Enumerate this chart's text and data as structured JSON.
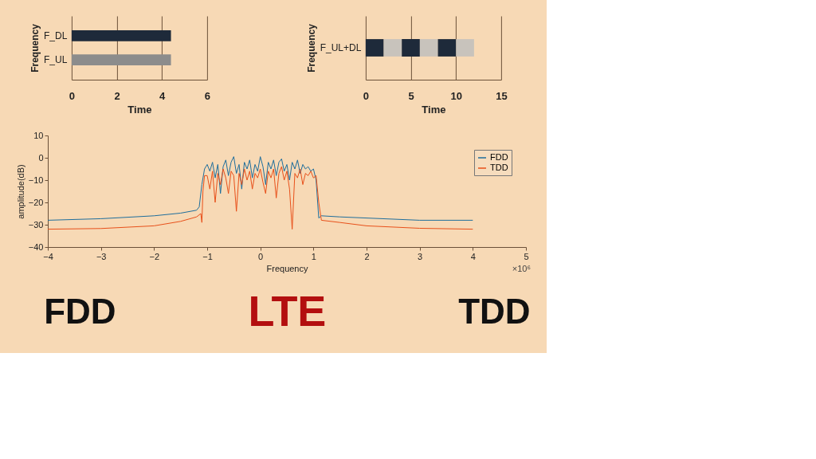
{
  "chart_data": [
    {
      "type": "bar",
      "orientation": "horizontal",
      "categories": [
        "F_DL",
        "F_UL"
      ],
      "values": [
        4.4,
        4.4
      ],
      "colors": [
        "#1e2a3a",
        "#8c8c8c"
      ],
      "xlabel": "Time",
      "ylabel": "Frequency",
      "xlim": [
        0,
        6
      ],
      "xticks": [
        0,
        2,
        4,
        6
      ],
      "grid": "x"
    },
    {
      "type": "bar",
      "orientation": "horizontal",
      "stacked": true,
      "categories": [
        "F_UL+DL"
      ],
      "xlabel": "Time",
      "ylabel": "Frequency",
      "xlim": [
        0,
        15
      ],
      "xticks": [
        0,
        5,
        10,
        15
      ],
      "grid": "x",
      "series": [
        {
          "color": "#1e2a3a",
          "values": [
            2
          ]
        },
        {
          "color": "#c8c3bc",
          "values": [
            2
          ]
        },
        {
          "color": "#1e2a3a",
          "values": [
            2
          ]
        },
        {
          "color": "#c8c3bc",
          "values": [
            2
          ]
        },
        {
          "color": "#1e2a3a",
          "values": [
            2
          ]
        },
        {
          "color": "#c8c3bc",
          "values": [
            2
          ]
        }
      ]
    },
    {
      "type": "line",
      "xlabel": "Frequency",
      "ylabel": "amplitude(dB)",
      "xlim": [
        -4,
        5
      ],
      "xticks": [
        -4,
        -3,
        -2,
        -1,
        0,
        1,
        2,
        3,
        4,
        5
      ],
      "ylim": [
        -40,
        10
      ],
      "yticks": [
        -40,
        -30,
        -20,
        -10,
        0,
        10
      ],
      "grid": false,
      "legend": "top right",
      "marker": "none",
      "line_style": "solid",
      "annotations": [
        "×10⁶",
        "FDD",
        "LTE",
        "TDD"
      ],
      "series": [
        {
          "name": "FDD",
          "color": "#1f6e9c",
          "x": [
            -4,
            -3,
            -2,
            -1.5,
            -1.2,
            -1.15,
            -1.1,
            -1.05,
            -1.0,
            -0.95,
            -0.9,
            -0.85,
            -0.8,
            -0.75,
            -0.7,
            -0.65,
            -0.6,
            -0.55,
            -0.5,
            -0.45,
            -0.4,
            -0.35,
            -0.3,
            -0.25,
            -0.2,
            -0.15,
            -0.1,
            -0.05,
            0,
            0.05,
            0.1,
            0.15,
            0.2,
            0.25,
            0.3,
            0.35,
            0.4,
            0.45,
            0.5,
            0.55,
            0.6,
            0.65,
            0.7,
            0.75,
            0.8,
            0.85,
            0.9,
            0.95,
            1.0,
            1.05,
            1.1,
            1.15,
            1.5,
            2,
            3,
            4
          ],
          "values": [
            -28,
            -27.3,
            -26,
            -24.8,
            -23.5,
            -22,
            -12,
            -5,
            -3,
            -6,
            -2,
            -9,
            -3,
            -16,
            -4,
            -1,
            -8,
            -2,
            0.5,
            -7,
            -3,
            -14,
            -2,
            -5,
            -1,
            -9,
            -3,
            -6,
            0.5,
            -4,
            -12,
            -2,
            -5,
            -1,
            -8,
            -2,
            -0.5,
            -6,
            -3,
            -10,
            -2,
            -5,
            -1,
            -7,
            -3,
            -5,
            -4,
            -6,
            -5,
            -10,
            -27,
            -26,
            -26.5,
            -27,
            -28,
            -28
          ]
        },
        {
          "name": "TDD",
          "color": "#e8501a",
          "x": [
            -4,
            -3,
            -2,
            -1.5,
            -1.2,
            -1.12,
            -1.1,
            -1.08,
            -1.05,
            -1.0,
            -0.95,
            -0.9,
            -0.85,
            -0.8,
            -0.75,
            -0.7,
            -0.65,
            -0.6,
            -0.55,
            -0.5,
            -0.45,
            -0.4,
            -0.35,
            -0.3,
            -0.25,
            -0.2,
            -0.15,
            -0.1,
            -0.05,
            0,
            0.05,
            0.1,
            0.15,
            0.2,
            0.25,
            0.3,
            0.35,
            0.4,
            0.45,
            0.5,
            0.55,
            0.6,
            0.65,
            0.7,
            0.75,
            0.8,
            0.85,
            0.9,
            0.95,
            1.0,
            1.05,
            1.1,
            1.15,
            1.5,
            2,
            3,
            4
          ],
          "values": [
            -32,
            -31.7,
            -30.5,
            -28.5,
            -26.5,
            -25,
            -29,
            -15,
            -8,
            -8,
            -14,
            -6,
            -20,
            -7,
            -12,
            -5,
            -9,
            -16,
            -6,
            -8,
            -24,
            -7,
            -12,
            -5,
            -10,
            -6,
            -14,
            -7,
            -9,
            -5,
            -11,
            -16,
            -6,
            -9,
            -5,
            -18,
            -7,
            -4,
            -10,
            -6,
            -14,
            -32,
            -7,
            -9,
            -5,
            -12,
            -7,
            -8,
            -6,
            -9,
            -8,
            -20,
            -28,
            -29,
            -30.5,
            -31.6,
            -32
          ]
        }
      ]
    }
  ]
}
